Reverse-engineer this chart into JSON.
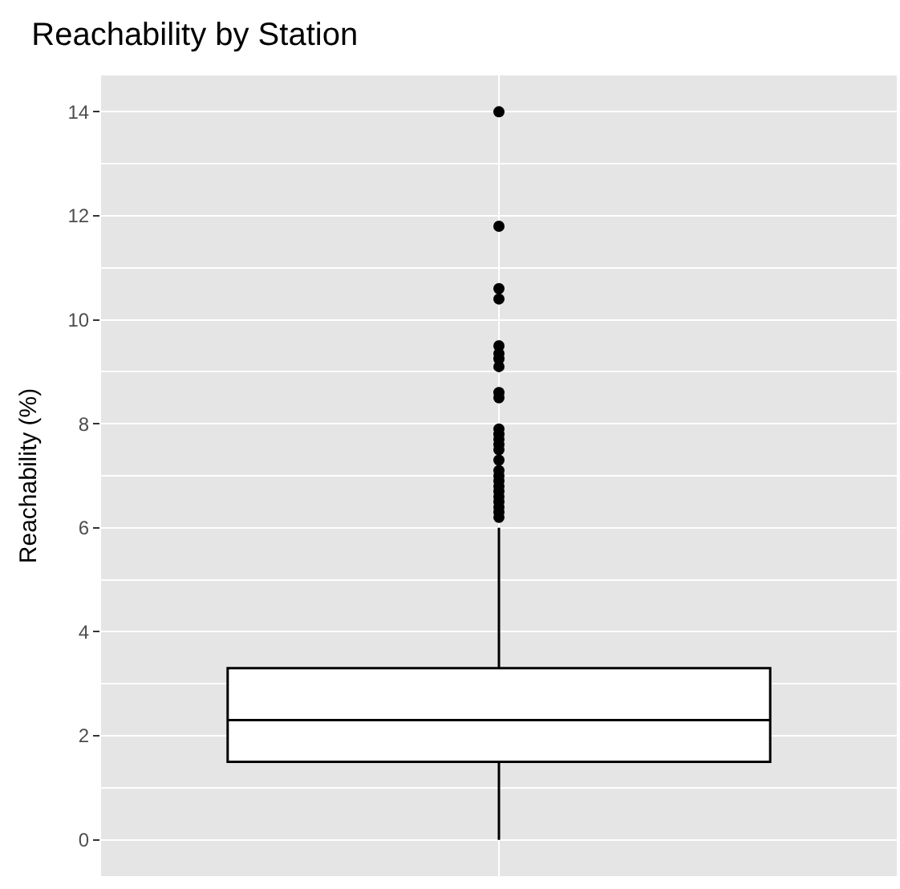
{
  "chart_data": {
    "type": "box",
    "title": "Reachability by Station",
    "ylabel": "Reachability (%)",
    "categories": [
      null
    ],
    "boxes": [
      {
        "low": 0,
        "q1": 1.5,
        "median": 2.3,
        "q3": 3.3,
        "high": 6.0,
        "outliers": [
          14.0,
          11.8,
          10.6,
          10.4,
          9.5,
          9.35,
          9.25,
          9.1,
          8.6,
          8.5,
          7.9,
          7.8,
          7.7,
          7.6,
          7.5,
          7.3,
          7.1,
          7.0,
          6.9,
          6.8,
          6.7,
          6.6,
          6.5,
          6.4,
          6.3,
          6.2
        ]
      }
    ],
    "ylim": [
      -0.7,
      14.7
    ],
    "yticks": [
      0,
      2,
      4,
      6,
      8,
      10,
      12,
      14
    ],
    "tick_labels": "y",
    "grid": true
  }
}
